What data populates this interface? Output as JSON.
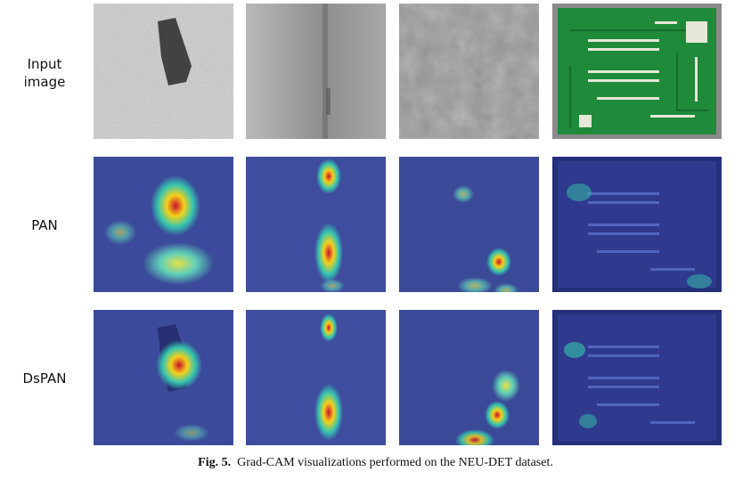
{
  "rows": [
    {
      "label": "Input image"
    },
    {
      "label": "PAN"
    },
    {
      "label": "DsPAN"
    }
  ],
  "caption": {
    "fig": "Fig. 5.",
    "text": "Grad-CAM visualizations performed on the NEU-DET dataset."
  }
}
